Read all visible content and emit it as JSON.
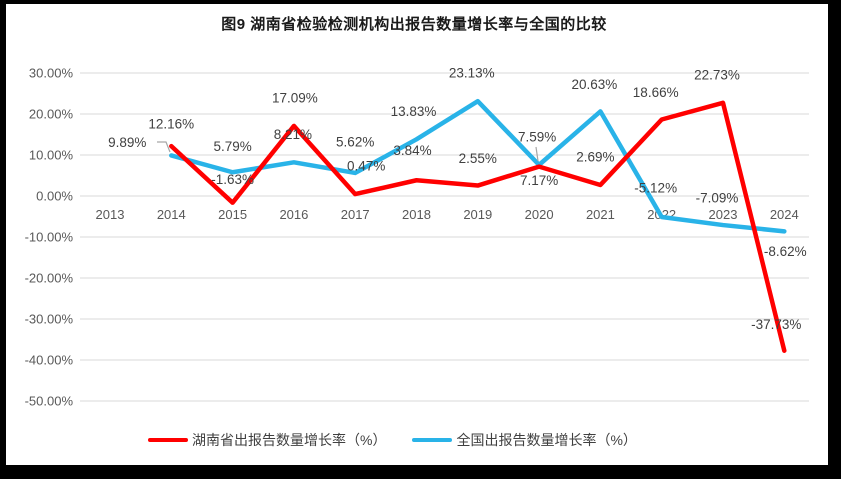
{
  "title": "图9 湖南省检验检测机构出报告数量增长率与全国的比较",
  "colors": {
    "hunan_series": "#FF0000",
    "national_series": "#29B3E8",
    "gridline": "#D9D9D9",
    "axis_text": "#595959",
    "data_label_text": "#404040",
    "leader_line": "#A6A6A6",
    "frame": "#000000"
  },
  "chart_data": {
    "type": "line",
    "title": "图9 湖南省检验检测机构出报告数量增长率与全国的比较",
    "categories": [
      "2013",
      "2014",
      "2015",
      "2016",
      "2017",
      "2018",
      "2019",
      "2020",
      "2021",
      "2022",
      "2023",
      "2024"
    ],
    "y_axis": {
      "min": -50,
      "max": 30,
      "step": 10,
      "tick_labels": [
        "30.00%",
        "20.00%",
        "10.00%",
        "0.00%",
        "-10.00%",
        "-20.00%",
        "-30.00%",
        "-40.00%",
        "-50.00%"
      ],
      "format": "0.00%"
    },
    "grid": true,
    "legend_position": "bottom",
    "series": [
      {
        "name": "湖南省出报告数量增长率（%）",
        "color": "#FF0000",
        "start_category": "2014",
        "values": [
          12.16,
          -1.63,
          17.09,
          0.47,
          3.84,
          2.55,
          7.17,
          2.69,
          18.66,
          22.73,
          -37.73
        ],
        "data_labels": [
          "12.16%",
          "-1.63%",
          "17.09%",
          "0.47%",
          "3.84%",
          "2.55%",
          "7.17%",
          "2.69%",
          "18.66%",
          "22.73%",
          "-37.73%"
        ]
      },
      {
        "name": "全国出报告数量增长率（%）",
        "color": "#29B3E8",
        "start_category": "2014",
        "values": [
          9.89,
          5.79,
          8.21,
          5.62,
          13.83,
          23.13,
          7.59,
          20.63,
          -5.12,
          -7.09,
          -8.62
        ],
        "data_labels": [
          "9.89%",
          "5.79%",
          "8.21%",
          "5.62%",
          "13.83%",
          "23.13%",
          "7.59%",
          "20.63%",
          "-5.12%",
          "-7.09%",
          "-8.62%"
        ]
      }
    ]
  }
}
